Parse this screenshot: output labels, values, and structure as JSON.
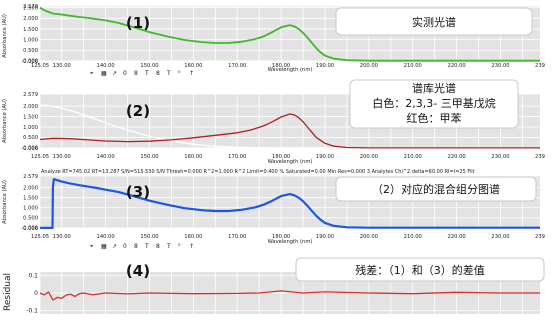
{
  "colors": {
    "green": "#3fb82a",
    "white_trace": "#ffffff",
    "red": "#b02020",
    "blue": "#1a56e8",
    "residual": "#d43030",
    "plot_bg": "#e3e3e3",
    "grid": "#ffffff"
  },
  "toolbar_glyphs": [
    "⌖",
    "▦",
    "↗",
    "0",
    "8",
    "T",
    "8",
    "T",
    "⁰",
    "↑"
  ],
  "status_line": "Analyze  RT=745.02  RT=13.287  S/N=515.530  S/N Thresh=0.000  R^2=1.000  R^2 Limit=0.400  % Saturated=0.00  Min Res=0.000  3 Analytes  Chi^2 delta=60.00  RI=I=25 Filt",
  "annotations": {
    "p1": "实测光谱",
    "p2_title": "谱库光谱",
    "p2_line2": "白色：2,3,3- 三甲基戊烷",
    "p2_line3": "红色：甲苯",
    "p3": "（2）对应的混合组分图谱",
    "p4": "残差：（1）和（3）的差值"
  },
  "chart_data": [
    {
      "type": "line",
      "panel_label": "(1)",
      "ylabel": "Absorbance (AU)",
      "xlabel": "Wavelength (nm)",
      "xlim": [
        125.05,
        239
      ],
      "ylim": [
        -0.006,
        2.579
      ],
      "y_ticks": [
        "2.579",
        "2.500",
        "2.000",
        "1.500",
        "1.000",
        "0.500",
        "0.000",
        "-0.006"
      ],
      "x_ticks": [
        "125.05",
        "130.00",
        "140.00",
        "150.00",
        "160.00",
        "170.00",
        "180.00",
        "190.00",
        "200.00",
        "210.00",
        "220.00",
        "230.00",
        "239"
      ],
      "series": [
        {
          "color": "#3fb82a",
          "x": [
            125.05,
            126,
            127,
            128,
            130,
            132,
            134,
            136,
            138,
            140,
            143,
            146,
            150,
            154,
            158,
            162,
            165,
            168,
            171,
            174,
            176,
            178,
            180,
            182,
            183,
            184,
            185,
            186,
            187,
            188,
            189,
            190,
            192,
            195,
            200,
            210,
            220,
            230,
            239
          ],
          "y": [
            2.5,
            2.38,
            2.3,
            2.22,
            2.18,
            2.12,
            2.06,
            2.02,
            1.96,
            1.9,
            1.78,
            1.6,
            1.35,
            1.15,
            0.98,
            0.88,
            0.84,
            0.84,
            0.9,
            1.02,
            1.15,
            1.35,
            1.58,
            1.68,
            1.62,
            1.5,
            1.32,
            1.1,
            0.85,
            0.6,
            0.4,
            0.25,
            0.1,
            0.03,
            0.01,
            0.01,
            0.01,
            0.01,
            0.01
          ]
        }
      ]
    },
    {
      "type": "line",
      "panel_label": "(2)",
      "ylabel": "Absorbance (AU)",
      "xlabel": "Wavelength (nm)",
      "xlim": [
        125.05,
        239
      ],
      "ylim": [
        -0.006,
        2.579
      ],
      "y_ticks": [
        "2.579",
        "2.000",
        "1.500",
        "1.000",
        "0.500",
        "0.000",
        "-0.006"
      ],
      "x_ticks": [
        "125.05",
        "130.00",
        "140.00",
        "150.00",
        "160.00",
        "170.00",
        "180.00",
        "190.00",
        "200.00",
        "210.00",
        "220.00",
        "230.00",
        "239"
      ],
      "series": [
        {
          "color": "#ffffff",
          "x": [
            125.05,
            127,
            130,
            133,
            136,
            140,
            145,
            150,
            155,
            160,
            165,
            170,
            175,
            180,
            190,
            200,
            239
          ],
          "y": [
            2.05,
            2.02,
            1.9,
            1.72,
            1.5,
            1.2,
            0.85,
            0.55,
            0.33,
            0.17,
            0.08,
            0.03,
            0.01,
            0.0,
            0.0,
            0.0,
            0.0
          ]
        },
        {
          "color": "#b02020",
          "x": [
            125.05,
            128,
            132,
            136,
            140,
            145,
            150,
            155,
            160,
            165,
            170,
            173,
            176,
            178,
            180,
            182,
            183,
            184,
            185,
            186,
            187,
            188,
            190,
            192,
            195,
            200,
            239
          ],
          "y": [
            0.4,
            0.46,
            0.44,
            0.38,
            0.33,
            0.3,
            0.32,
            0.38,
            0.48,
            0.6,
            0.72,
            0.85,
            1.05,
            1.25,
            1.48,
            1.62,
            1.58,
            1.45,
            1.25,
            1.0,
            0.75,
            0.5,
            0.22,
            0.08,
            0.02,
            0.0,
            0.0
          ]
        }
      ]
    },
    {
      "type": "line",
      "panel_label": "(3)",
      "ylabel": "Absorbance (AU)",
      "xlabel": "Wavelength (nm)",
      "xlim": [
        125.05,
        239
      ],
      "ylim": [
        -0.006,
        2.579
      ],
      "y_ticks": [
        "2.579",
        "2.000",
        "1.500",
        "1.000",
        "0.500",
        "0.000",
        "-0.006"
      ],
      "x_ticks": [
        "125.05",
        "130.00",
        "140.00",
        "150.00",
        "160.00",
        "170.00",
        "180.00",
        "190.00",
        "200.00",
        "210.00",
        "220.00",
        "230.00",
        "239"
      ],
      "series": [
        {
          "color": "#1a56e8",
          "x": [
            125.05,
            127.9,
            128,
            128.2,
            130,
            132,
            134,
            136,
            138,
            140,
            143,
            146,
            150,
            154,
            158,
            162,
            165,
            168,
            171,
            174,
            176,
            178,
            180,
            182,
            183,
            184,
            185,
            186,
            187,
            188,
            189,
            190,
            192,
            195,
            200,
            210,
            220,
            230,
            239
          ],
          "y": [
            0.0,
            0.0,
            2.0,
            2.42,
            2.3,
            2.2,
            2.12,
            2.05,
            1.98,
            1.9,
            1.78,
            1.6,
            1.35,
            1.15,
            0.98,
            0.88,
            0.84,
            0.84,
            0.9,
            1.02,
            1.15,
            1.35,
            1.58,
            1.68,
            1.62,
            1.5,
            1.32,
            1.1,
            0.85,
            0.6,
            0.4,
            0.25,
            0.1,
            0.03,
            0.01,
            0.01,
            0.01,
            0.01,
            0.01
          ]
        }
      ]
    },
    {
      "type": "line",
      "panel_label": "(4)",
      "ylabel": "Residual",
      "xlim": [
        125.05,
        239
      ],
      "ylim": [
        -0.12,
        0.12
      ],
      "y_ticks": [
        "0.1",
        "0",
        "-0.1"
      ],
      "series": [
        {
          "color": "#d43030",
          "x": [
            125.05,
            126,
            127,
            128,
            129,
            130,
            131,
            132,
            133,
            134,
            135,
            137,
            140,
            145,
            150,
            160,
            170,
            175,
            180,
            185,
            190,
            200,
            210,
            220,
            230,
            239
          ],
          "y": [
            0.0,
            -0.01,
            0.005,
            -0.04,
            -0.025,
            -0.03,
            -0.012,
            -0.006,
            -0.02,
            -0.004,
            0.0,
            -0.01,
            0.0,
            -0.005,
            0.0,
            -0.004,
            -0.002,
            0.0,
            0.012,
            0.0,
            0.006,
            0.0,
            -0.004,
            0.004,
            0.0,
            0.0
          ]
        }
      ]
    }
  ]
}
